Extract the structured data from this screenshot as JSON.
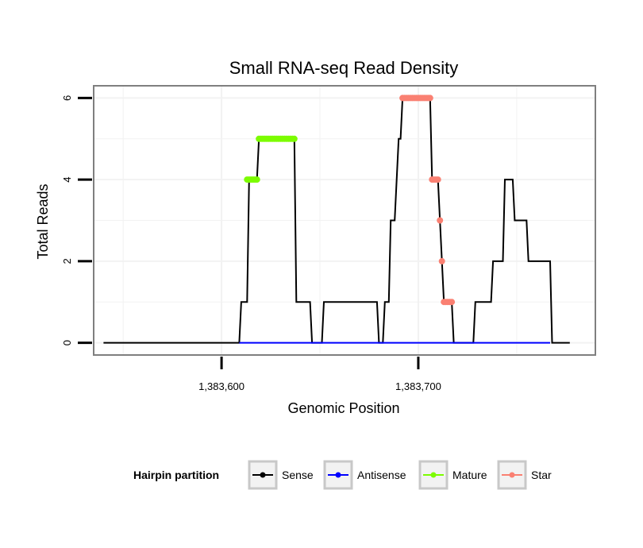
{
  "chart_data": {
    "type": "line",
    "title": "Small RNA-seq Read Density",
    "xlabel": "Genomic Position",
    "ylabel": "Total Reads",
    "xlim": [
      1383535,
      1383790
    ],
    "ylim": [
      -0.3,
      6.3
    ],
    "x_ticks": [
      1383600,
      1383700
    ],
    "x_tick_labels": [
      "1,383,600",
      "1,383,700"
    ],
    "y_ticks": [
      0,
      2,
      4,
      6
    ],
    "y_tick_labels": [
      "0",
      "2",
      "4",
      "6"
    ],
    "grid": true,
    "colors": {
      "Sense": "#000000",
      "Antisense": "#0000ff",
      "Mature": "#7cfc00",
      "Star": "#fa8072"
    },
    "series": [
      {
        "name": "Sense",
        "points": [
          [
            1383540,
            0
          ],
          [
            1383609,
            0
          ],
          [
            1383610,
            1
          ],
          [
            1383612,
            1
          ],
          [
            1383613,
            1
          ],
          [
            1383614,
            4
          ],
          [
            1383618,
            4
          ],
          [
            1383619,
            5
          ],
          [
            1383634,
            5
          ],
          [
            1383637,
            5
          ],
          [
            1383638,
            1
          ],
          [
            1383645,
            1
          ],
          [
            1383646,
            0
          ],
          [
            1383651,
            0
          ],
          [
            1383652,
            1
          ],
          [
            1383679,
            1
          ],
          [
            1383680,
            0
          ],
          [
            1383682,
            0
          ],
          [
            1383683,
            1
          ],
          [
            1383685,
            1
          ],
          [
            1383686,
            3
          ],
          [
            1383688,
            3
          ],
          [
            1383690,
            5
          ],
          [
            1383691,
            5
          ],
          [
            1383692,
            6
          ],
          [
            1383706,
            6
          ],
          [
            1383707,
            4
          ],
          [
            1383710,
            4
          ],
          [
            1383711,
            3
          ],
          [
            1383712,
            2
          ],
          [
            1383713,
            1
          ],
          [
            1383717,
            1
          ],
          [
            1383718,
            0
          ],
          [
            1383728,
            0
          ],
          [
            1383729,
            1
          ],
          [
            1383737,
            1
          ],
          [
            1383738,
            2
          ],
          [
            1383743,
            2
          ],
          [
            1383744,
            4
          ],
          [
            1383748,
            4
          ],
          [
            1383749,
            3
          ],
          [
            1383755,
            3
          ],
          [
            1383756,
            2
          ],
          [
            1383767,
            2
          ],
          [
            1383768,
            0
          ],
          [
            1383777,
            0
          ]
        ]
      },
      {
        "name": "Antisense",
        "points": [
          [
            1383609,
            0
          ],
          [
            1383767,
            0
          ]
        ]
      },
      {
        "name": "Mature",
        "points": [
          [
            1383613,
            4
          ],
          [
            1383614,
            4
          ],
          [
            1383615,
            4
          ],
          [
            1383616,
            4
          ],
          [
            1383617,
            4
          ],
          [
            1383618,
            4
          ],
          [
            1383619,
            5
          ],
          [
            1383620,
            5
          ],
          [
            1383621,
            5
          ],
          [
            1383622,
            5
          ],
          [
            1383623,
            5
          ],
          [
            1383624,
            5
          ],
          [
            1383625,
            5
          ],
          [
            1383626,
            5
          ],
          [
            1383627,
            5
          ],
          [
            1383628,
            5
          ],
          [
            1383629,
            5
          ],
          [
            1383630,
            5
          ],
          [
            1383631,
            5
          ],
          [
            1383632,
            5
          ],
          [
            1383633,
            5
          ],
          [
            1383634,
            5
          ],
          [
            1383635,
            5
          ],
          [
            1383636,
            5
          ],
          [
            1383637,
            5
          ]
        ]
      },
      {
        "name": "Star",
        "points": [
          [
            1383692,
            6
          ],
          [
            1383693,
            6
          ],
          [
            1383694,
            6
          ],
          [
            1383695,
            6
          ],
          [
            1383696,
            6
          ],
          [
            1383697,
            6
          ],
          [
            1383698,
            6
          ],
          [
            1383699,
            6
          ],
          [
            1383700,
            6
          ],
          [
            1383701,
            6
          ],
          [
            1383702,
            6
          ],
          [
            1383703,
            6
          ],
          [
            1383704,
            6
          ],
          [
            1383705,
            6
          ],
          [
            1383706,
            6
          ],
          [
            1383707,
            4
          ],
          [
            1383708,
            4
          ],
          [
            1383709,
            4
          ],
          [
            1383710,
            4
          ],
          [
            1383711,
            3
          ],
          [
            1383712,
            2
          ],
          [
            1383713,
            1
          ],
          [
            1383714,
            1
          ],
          [
            1383715,
            1
          ],
          [
            1383716,
            1
          ],
          [
            1383717,
            1
          ]
        ]
      }
    ],
    "legend": {
      "title": "Hairpin partition",
      "position": "bottom",
      "entries": [
        "Sense",
        "Antisense",
        "Mature",
        "Star"
      ]
    }
  }
}
